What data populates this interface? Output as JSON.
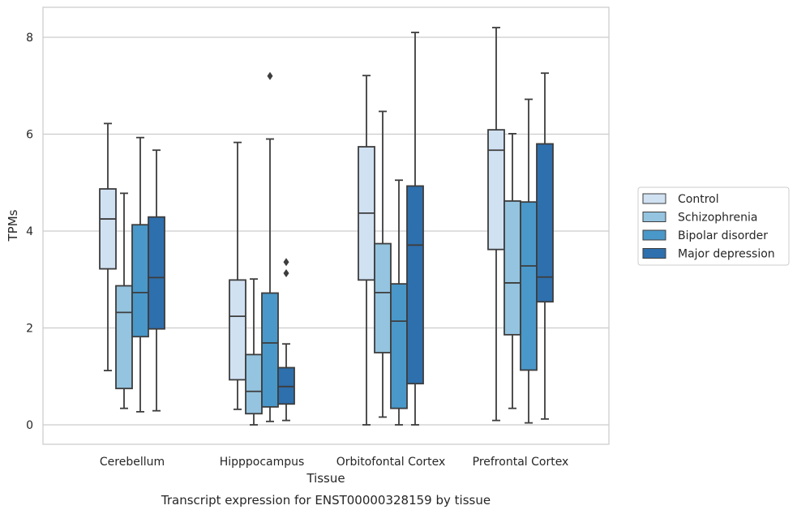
{
  "chart_data": {
    "type": "box",
    "title": "",
    "caption": "Transcript expression for ENST00000328159 by tissue",
    "xlabel": "Tissue",
    "ylabel": "TPMs",
    "ylim": [
      -0.4,
      8.6
    ],
    "yticks": [
      0,
      2,
      4,
      6,
      8
    ],
    "grid": "horizontal",
    "legend_position": "right",
    "categories": [
      "Cerebellum",
      "Hipppocampus",
      "Orbitofontal Cortex",
      "Prefrontal Cortex"
    ],
    "series": [
      {
        "name": "Control",
        "color": "#d0e1f2",
        "boxes": [
          {
            "whislo": 1.12,
            "q1": 3.22,
            "med": 4.25,
            "q3": 4.87,
            "whishi": 6.22,
            "fliers": []
          },
          {
            "whislo": 0.32,
            "q1": 0.93,
            "med": 2.24,
            "q3": 2.99,
            "whishi": 5.83,
            "fliers": []
          },
          {
            "whislo": 0.0,
            "q1": 2.99,
            "med": 4.37,
            "q3": 5.74,
            "whishi": 7.21,
            "fliers": []
          },
          {
            "whislo": 0.09,
            "q1": 3.62,
            "med": 5.67,
            "q3": 6.09,
            "whishi": 8.2,
            "fliers": []
          }
        ]
      },
      {
        "name": "Schizophrenia",
        "color": "#94c4df",
        "boxes": [
          {
            "whislo": 0.34,
            "q1": 0.75,
            "med": 2.32,
            "q3": 2.87,
            "whishi": 4.78,
            "fliers": []
          },
          {
            "whislo": 0.0,
            "q1": 0.23,
            "med": 0.69,
            "q3": 1.45,
            "whishi": 3.01,
            "fliers": []
          },
          {
            "whislo": 0.16,
            "q1": 1.49,
            "med": 2.73,
            "q3": 3.74,
            "whishi": 6.47,
            "fliers": []
          },
          {
            "whislo": 0.34,
            "q1": 1.86,
            "med": 2.93,
            "q3": 4.62,
            "whishi": 6.01,
            "fliers": []
          }
        ]
      },
      {
        "name": "Bipolar disorder",
        "color": "#4a98c9",
        "boxes": [
          {
            "whislo": 0.27,
            "q1": 1.82,
            "med": 2.73,
            "q3": 4.13,
            "whishi": 5.93,
            "fliers": []
          },
          {
            "whislo": 0.07,
            "q1": 0.37,
            "med": 1.69,
            "q3": 2.72,
            "whishi": 5.9,
            "fliers": [
              7.2
            ]
          },
          {
            "whislo": 0.0,
            "q1": 0.34,
            "med": 2.14,
            "q3": 2.91,
            "whishi": 5.05,
            "fliers": []
          },
          {
            "whislo": 0.04,
            "q1": 1.13,
            "med": 3.28,
            "q3": 4.6,
            "whishi": 6.72,
            "fliers": []
          }
        ]
      },
      {
        "name": "Major depression",
        "color": "#2e6fad",
        "boxes": [
          {
            "whislo": 0.29,
            "q1": 1.98,
            "med": 3.04,
            "q3": 4.29,
            "whishi": 5.67,
            "fliers": []
          },
          {
            "whislo": 0.09,
            "q1": 0.43,
            "med": 0.79,
            "q3": 1.18,
            "whishi": 1.67,
            "fliers": [
              3.36,
              3.13
            ]
          },
          {
            "whislo": 0.0,
            "q1": 0.85,
            "med": 3.71,
            "q3": 4.93,
            "whishi": 8.1,
            "fliers": []
          },
          {
            "whislo": 0.12,
            "q1": 2.54,
            "med": 3.05,
            "q3": 5.8,
            "whishi": 7.26,
            "fliers": []
          }
        ]
      }
    ]
  }
}
